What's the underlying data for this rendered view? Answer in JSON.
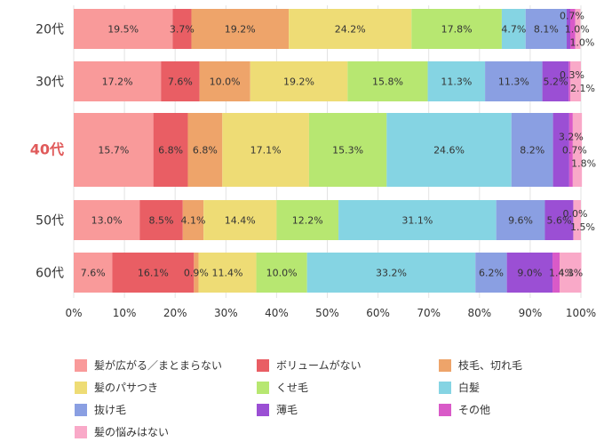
{
  "chart_data": {
    "type": "bar",
    "orientation": "horizontal",
    "stacked": true,
    "categories": [
      "20代",
      "30代",
      "40代",
      "50代",
      "60代"
    ],
    "highlight_category": "40代",
    "series": [
      {
        "name": "髪が広がる／まとまらない",
        "color": "#f99a9a",
        "values": [
          19.5,
          17.2,
          15.7,
          13.0,
          7.6
        ],
        "labels": [
          "19.5%",
          "17.2%",
          "15.7%",
          "13.0%",
          "7.6%"
        ]
      },
      {
        "name": "ボリュームがない",
        "color": "#e95e64",
        "values": [
          3.7,
          7.6,
          6.8,
          8.5,
          16.1
        ],
        "labels": [
          "3.7%",
          "7.6%",
          "6.8%",
          "8.5%",
          "16.1%"
        ]
      },
      {
        "name": "枝毛、切れ毛",
        "color": "#eea46a",
        "values": [
          19.2,
          10.0,
          6.8,
          4.1,
          0.9
        ],
        "labels": [
          "19.2%",
          "10.0%",
          "6.8%",
          "4.1%",
          "0.9%"
        ]
      },
      {
        "name": "髪のパサつき",
        "color": "#eedc75",
        "values": [
          24.2,
          19.2,
          17.1,
          14.4,
          11.4
        ],
        "labels": [
          "24.2%",
          "19.2%",
          "17.1%",
          "14.4%",
          "11.4%"
        ]
      },
      {
        "name": "くせ毛",
        "color": "#b7e771",
        "values": [
          17.8,
          15.8,
          15.3,
          12.2,
          10.0
        ],
        "labels": [
          "17.8%",
          "15.8%",
          "15.3%",
          "12.2%",
          "10.0%"
        ]
      },
      {
        "name": "白髪",
        "color": "#85d4e3",
        "values": [
          4.7,
          11.3,
          24.6,
          31.1,
          33.2
        ],
        "labels": [
          "4.7%",
          "11.3%",
          "24.6%",
          "31.1%",
          "33.2%"
        ]
      },
      {
        "name": "抜け毛",
        "color": "#8a9fe2",
        "values": [
          8.1,
          11.3,
          8.2,
          9.6,
          6.2
        ],
        "labels": [
          "8.1%",
          "11.3%",
          "8.2%",
          "9.6%",
          "6.2%"
        ]
      },
      {
        "name": "薄毛",
        "color": "#9b4fd4",
        "values": [
          0.7,
          5.2,
          3.2,
          5.6,
          9.0
        ],
        "labels": [
          "0.7%",
          "5.2%",
          "3.2%",
          "5.6%",
          "9.0%"
        ]
      },
      {
        "name": "その他",
        "color": "#d95ac8",
        "values": [
          1.0,
          0.3,
          0.7,
          0.0,
          1.4
        ],
        "labels": [
          "1.0%",
          "0.3%",
          "0.7%",
          "0.0%",
          "1.4%"
        ]
      },
      {
        "name": "髪の悩みはない",
        "color": "#f9a9c8",
        "values": [
          1.0,
          2.1,
          1.8,
          1.5,
          4.3
        ],
        "labels": [
          "1.0%",
          "2.1%",
          "1.8%",
          "1.5%",
          "4.3%"
        ]
      }
    ],
    "xlim": [
      0,
      100
    ],
    "x_ticks": [
      "0%",
      "10%",
      "20%",
      "30%",
      "40%",
      "50%",
      "60%",
      "70%",
      "80%",
      "90%",
      "100%"
    ],
    "grid": true,
    "legend_position": "bottom"
  }
}
